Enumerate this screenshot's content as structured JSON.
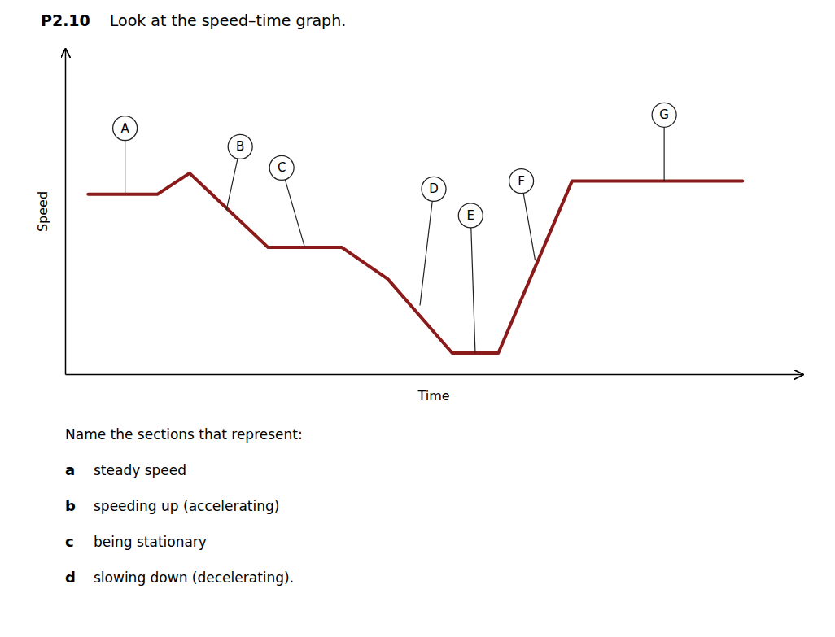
{
  "chart_data": {
    "type": "line",
    "title": "P2.10",
    "subtitle": "Look at the speed–time graph.",
    "x_label": "Time",
    "y_label": "Speed",
    "color": "#8b1a1a",
    "x": [
      0.3,
      1.8,
      2.5,
      4.2,
      5.8,
      6.8,
      8.2,
      9.2,
      10.8,
      11.5,
      14.5
    ],
    "values": [
      6.0,
      6.0,
      6.8,
      4.0,
      4.0,
      2.8,
      0.0,
      0.0,
      6.5,
      6.5,
      6.5
    ],
    "xlim": [
      -0.2,
      15.8
    ],
    "ylim": [
      -0.8,
      11.5
    ],
    "xticks": [],
    "yticks": [],
    "tick_labels": false,
    "annotations": [
      {
        "text": "A",
        "x": 1.1,
        "y": 6.0,
        "text_x": 1.1,
        "text_y": 8.5
      },
      {
        "text": "B",
        "x": 3.3,
        "y": 5.4,
        "text_x": 3.6,
        "text_y": 7.8
      },
      {
        "text": "C",
        "x": 5.0,
        "y": 4.0,
        "text_x": 4.5,
        "text_y": 7.0
      },
      {
        "text": "D",
        "x": 7.5,
        "y": 1.8,
        "text_x": 7.8,
        "text_y": 6.2
      },
      {
        "text": "E",
        "x": 8.7,
        "y": 0.0,
        "text_x": 8.6,
        "text_y": 5.2
      },
      {
        "text": "F",
        "x": 10.0,
        "y": 3.5,
        "text_x": 9.7,
        "text_y": 6.5
      },
      {
        "text": "G",
        "x": 12.8,
        "y": 6.5,
        "text_x": 12.8,
        "text_y": 9.0
      }
    ],
    "question": "Name the sections that represent:",
    "items": [
      {
        "label": "a",
        "text": "steady speed"
      },
      {
        "label": "b",
        "text": "speeding up (accelerating)"
      },
      {
        "label": "c",
        "text": "being stationary"
      },
      {
        "label": "d",
        "text": "slowing down (decelerating)."
      }
    ]
  }
}
